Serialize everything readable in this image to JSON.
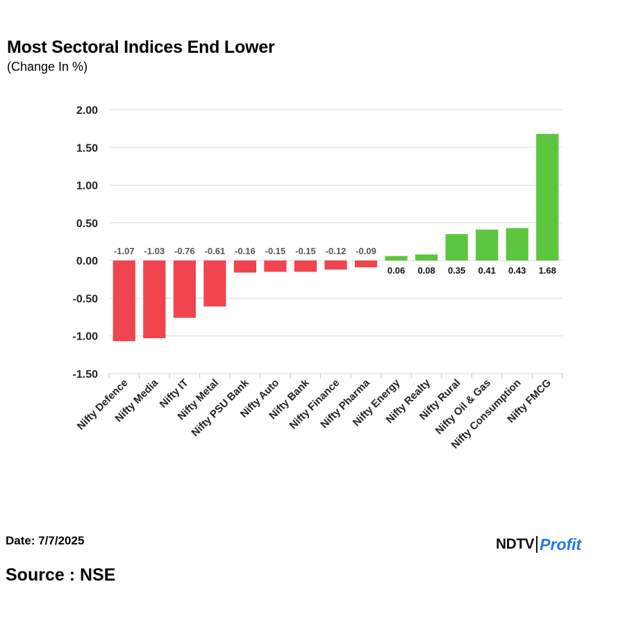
{
  "header": {
    "title": "Most Sectoral Indices End Lower",
    "subtitle": "(Change In %)"
  },
  "footer": {
    "date": "Date: 7/7/2025",
    "source": "Source : NSE",
    "logo_left": "NDTV",
    "logo_right": "Profit"
  },
  "colors": {
    "negative": "#f0444f",
    "positive": "#5cc63f",
    "grid": "#d9d9d9",
    "axis_text": "#222222"
  },
  "chart_data": {
    "type": "bar",
    "title": "Most Sectoral Indices End Lower",
    "subtitle": "(Change In %)",
    "categories": [
      "Nifty Defence",
      "Nifty Media",
      "Nifty IT",
      "Nifty Metal",
      "Nifty PSU Bank",
      "Nifty Auto",
      "Nifty Bank",
      "Nifty Finance",
      "Nifty Pharma",
      "Nifty Energy",
      "Nifty Realty",
      "Nifty Rural",
      "Nifty Oil & Gas",
      "Nifty Consumption",
      "Nifty FMCG"
    ],
    "values": [
      -1.07,
      -1.03,
      -0.76,
      -0.61,
      -0.16,
      -0.15,
      -0.15,
      -0.12,
      -0.09,
      0.06,
      0.08,
      0.35,
      0.41,
      0.43,
      1.68
    ],
    "data_labels": [
      "-1.07",
      "-1.03",
      "-0.76",
      "-0.61",
      "-0.16",
      "-0.15",
      "-0.15",
      "-0.12",
      "-0.09",
      "0.06",
      "0.08",
      "0.35",
      "0.41",
      "0.43",
      "1.68"
    ],
    "ylim": [
      -1.5,
      2.0
    ],
    "yticks": [
      "2.00",
      "1.50",
      "1.00",
      "0.50",
      "0.00",
      "-0.50",
      "-1.00",
      "-1.50"
    ],
    "ytick_values": [
      2.0,
      1.5,
      1.0,
      0.5,
      0.0,
      -0.5,
      -1.0,
      -1.5
    ],
    "xlabel": "",
    "ylabel": "",
    "grid": true,
    "legend": "none"
  }
}
